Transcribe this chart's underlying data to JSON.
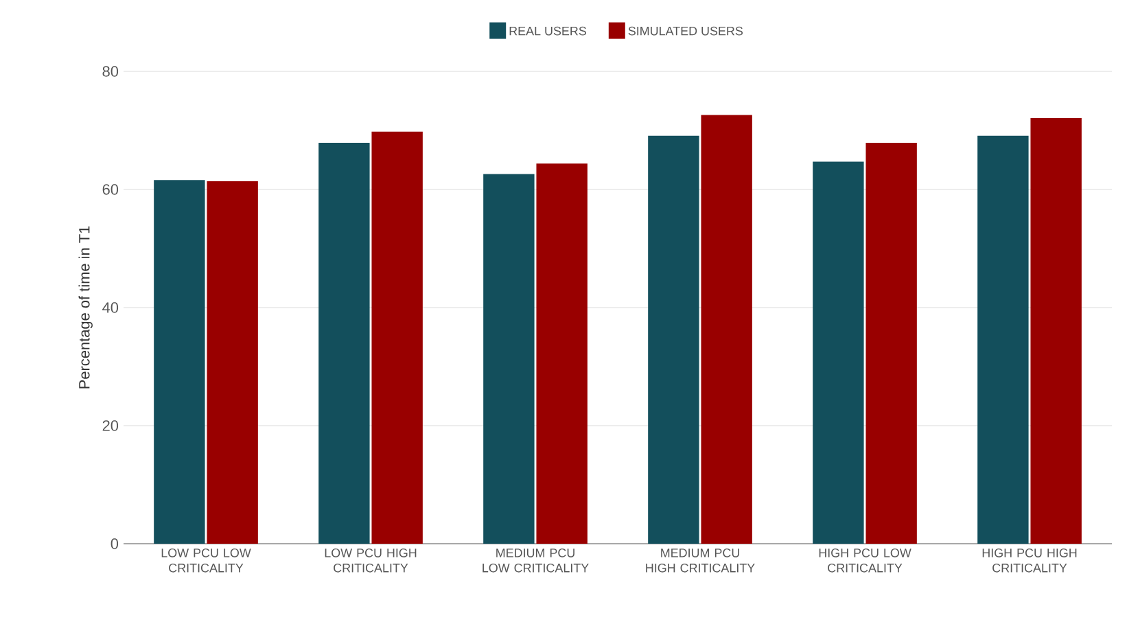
{
  "chart_data": {
    "type": "bar",
    "ylabel": "Percentage of time in T1",
    "categories": [
      "LOW PCU LOW CRITICALITY",
      "LOW PCU HIGH CRITICALITY",
      "MEDIUM PCU LOW CRITICALITY",
      "MEDIUM PCU HIGH CRITICALITY",
      "HIGH PCU LOW CRITICALITY",
      "HIGH PCU HIGH CRITICALITY"
    ],
    "series": [
      {
        "name": "REAL USERS",
        "color": "#134f5c",
        "values": [
          61.6,
          67.9,
          62.6,
          69.1,
          64.7,
          69.1
        ]
      },
      {
        "name": "SIMULATED USERS",
        "color": "#990000",
        "values": [
          61.4,
          69.8,
          64.4,
          72.6,
          67.9,
          72.1
        ]
      }
    ],
    "ylim": [
      0,
      80
    ],
    "yticks": [
      0,
      20,
      40,
      60,
      80
    ],
    "grid": "y",
    "legend": "top"
  }
}
